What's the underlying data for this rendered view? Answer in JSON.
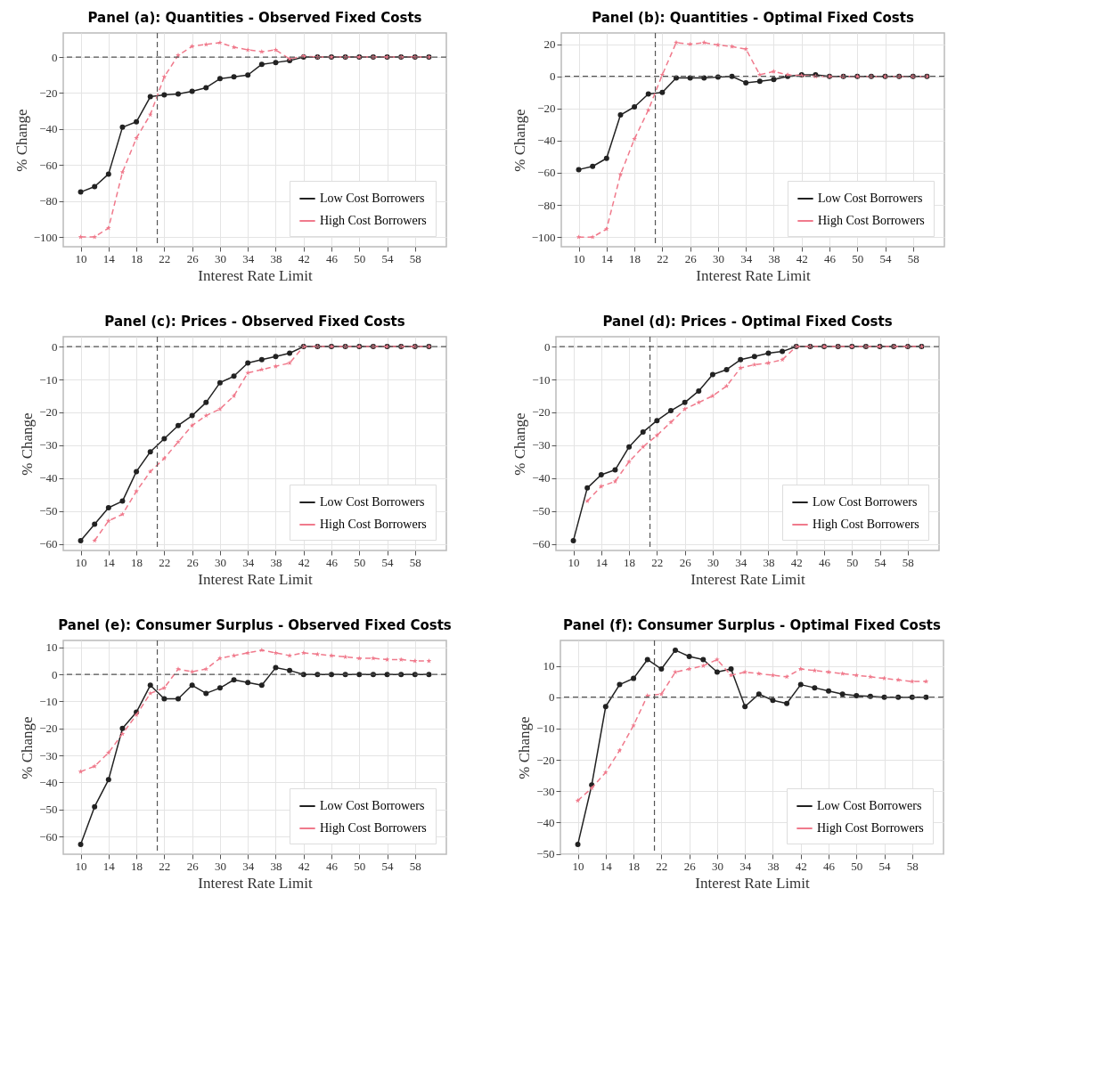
{
  "chart_data": [
    {
      "type": "line",
      "title": "Panel (a): Quantities - Observed Fixed Costs",
      "xlabel": "Interest Rate Limit",
      "ylabel": "% Change",
      "x": [
        10,
        12,
        14,
        16,
        18,
        20,
        22,
        24,
        26,
        28,
        30,
        32,
        34,
        36,
        38,
        40,
        42,
        44,
        46,
        48,
        50,
        52,
        54,
        56,
        58,
        60
      ],
      "xlim": [
        7.5,
        62.5
      ],
      "xticks": [
        10,
        14,
        18,
        22,
        26,
        30,
        34,
        38,
        42,
        46,
        50,
        54,
        58
      ],
      "ylim": [
        -105.4,
        13.4
      ],
      "yticks": [
        -100,
        -80,
        -60,
        -40,
        -20,
        0
      ],
      "grid": true,
      "legend": "bottom right",
      "ref_lines": [
        {
          "axis": "x",
          "value": 21,
          "color": "#555555",
          "line_style": "dashed"
        },
        {
          "axis": "y",
          "value": 0,
          "color": "#555555",
          "line_style": "dashed"
        }
      ],
      "series": [
        {
          "name": "Low Cost Borrowers",
          "color": "#222222",
          "line_style": "solid",
          "marker": "circle",
          "values": [
            -75,
            -72,
            -65,
            -39,
            -36,
            -22,
            -21,
            -20.5,
            -19,
            -17,
            -12,
            -11,
            -10,
            -4,
            -3,
            -2,
            0,
            0,
            0,
            0,
            0,
            0,
            0,
            0,
            0,
            0
          ]
        },
        {
          "name": "High Cost Borrowers",
          "color": "#f07a8c",
          "line_style": "dashed",
          "marker": "star",
          "values": [
            -100,
            -100,
            -95,
            -64,
            -45,
            -32,
            -11,
            1,
            6,
            7,
            8,
            5.5,
            4,
            3,
            4,
            -1,
            0.5,
            0,
            0,
            0,
            0,
            0,
            0,
            0,
            0,
            0
          ]
        }
      ]
    },
    {
      "type": "line",
      "title": "Panel (b): Quantities - Optimal Fixed Costs",
      "xlabel": "Interest Rate Limit",
      "ylabel": "% Change",
      "x": [
        10,
        12,
        14,
        16,
        18,
        20,
        22,
        24,
        26,
        28,
        30,
        32,
        34,
        36,
        38,
        40,
        42,
        44,
        46,
        48,
        50,
        52,
        54,
        56,
        58,
        60
      ],
      "xlim": [
        7.5,
        62.5
      ],
      "xticks": [
        10,
        14,
        18,
        22,
        26,
        30,
        34,
        38,
        42,
        46,
        50,
        54,
        58
      ],
      "ylim": [
        -106,
        27
      ],
      "yticks": [
        -100,
        -80,
        -60,
        -40,
        -20,
        0,
        20
      ],
      "grid": true,
      "legend": "bottom right",
      "ref_lines": [
        {
          "axis": "x",
          "value": 21,
          "color": "#555555",
          "line_style": "dashed"
        },
        {
          "axis": "y",
          "value": 0,
          "color": "#555555",
          "line_style": "dashed"
        }
      ],
      "series": [
        {
          "name": "Low Cost Borrowers",
          "color": "#222222",
          "line_style": "solid",
          "marker": "circle",
          "values": [
            -58,
            -56,
            -51,
            -24,
            -19,
            -11,
            -10,
            -1,
            -1,
            -1,
            -0.5,
            0,
            -4,
            -3,
            -2,
            0,
            1,
            1,
            0,
            0,
            0,
            0,
            0,
            0,
            0,
            0
          ]
        },
        {
          "name": "High Cost Borrowers",
          "color": "#f07a8c",
          "line_style": "dashed",
          "marker": "star",
          "values": [
            -100,
            -100,
            -95,
            -61,
            -39,
            -21,
            1,
            21,
            20,
            21,
            19.5,
            18.5,
            17,
            1,
            3,
            1,
            0.5,
            0,
            0,
            0,
            0,
            0,
            0,
            0,
            0,
            0
          ]
        }
      ]
    },
    {
      "type": "line",
      "title": "Panel (c): Prices - Observed Fixed Costs",
      "xlabel": "Interest Rate Limit",
      "ylabel": "% Change",
      "x": [
        10,
        12,
        14,
        16,
        18,
        20,
        22,
        24,
        26,
        28,
        30,
        32,
        34,
        36,
        38,
        40,
        42,
        44,
        46,
        48,
        50,
        52,
        54,
        56,
        58,
        60
      ],
      "xlim": [
        7.5,
        62.5
      ],
      "xticks": [
        10,
        14,
        18,
        22,
        26,
        30,
        34,
        38,
        42,
        46,
        50,
        54,
        58
      ],
      "ylim": [
        -62,
        3
      ],
      "yticks": [
        -60,
        -50,
        -40,
        -30,
        -20,
        -10,
        0
      ],
      "grid": true,
      "legend": "bottom right",
      "ref_lines": [
        {
          "axis": "x",
          "value": 21,
          "color": "#555555",
          "line_style": "dashed"
        },
        {
          "axis": "y",
          "value": 0,
          "color": "#555555",
          "line_style": "dashed"
        }
      ],
      "series": [
        {
          "name": "Low Cost Borrowers",
          "color": "#222222",
          "line_style": "solid",
          "marker": "circle",
          "values": [
            -59,
            -54,
            -49,
            -47,
            -38,
            -32,
            -28,
            -24,
            -21,
            -17,
            -11,
            -9,
            -5,
            -4,
            -3,
            -2,
            0,
            0,
            0,
            0,
            0,
            0,
            0,
            0,
            0,
            0
          ]
        },
        {
          "name": "High Cost Borrowers",
          "color": "#f07a8c",
          "line_style": "dashed",
          "marker": "star",
          "values": [
            null,
            -59,
            -53,
            -51,
            -44,
            -38,
            -34,
            -29,
            -24,
            -21,
            -19,
            -15,
            -8,
            -7,
            -6,
            -5,
            0,
            0,
            0,
            0,
            0,
            0,
            0,
            0,
            0,
            0
          ]
        }
      ]
    },
    {
      "type": "line",
      "title": "Panel (d): Prices - Optimal Fixed Costs",
      "xlabel": "Interest Rate Limit",
      "ylabel": "% Change",
      "x": [
        10,
        12,
        14,
        16,
        18,
        20,
        22,
        24,
        26,
        28,
        30,
        32,
        34,
        36,
        38,
        40,
        42,
        44,
        46,
        48,
        50,
        52,
        54,
        56,
        58,
        60
      ],
      "xlim": [
        7.5,
        62.5
      ],
      "xticks": [
        10,
        14,
        18,
        22,
        26,
        30,
        34,
        38,
        42,
        46,
        50,
        54,
        58
      ],
      "ylim": [
        -62,
        3
      ],
      "yticks": [
        -60,
        -50,
        -40,
        -30,
        -20,
        -10,
        0
      ],
      "grid": true,
      "legend": "bottom right",
      "ref_lines": [
        {
          "axis": "x",
          "value": 21,
          "color": "#555555",
          "line_style": "dashed"
        },
        {
          "axis": "y",
          "value": 0,
          "color": "#555555",
          "line_style": "dashed"
        }
      ],
      "series": [
        {
          "name": "Low Cost Borrowers",
          "color": "#222222",
          "line_style": "solid",
          "marker": "circle",
          "values": [
            -59,
            -43,
            -39,
            -37.5,
            -30.5,
            -26,
            -22.5,
            -19.5,
            -17,
            -13.5,
            -8.5,
            -7,
            -4,
            -3,
            -2,
            -1.5,
            0,
            0,
            0,
            0,
            0,
            0,
            0,
            0,
            0,
            0
          ]
        },
        {
          "name": "High Cost Borrowers",
          "color": "#f07a8c",
          "line_style": "dashed",
          "marker": "star",
          "values": [
            null,
            -47,
            -42.5,
            -41,
            -35,
            -30.5,
            -27,
            -23,
            -19,
            -17,
            -15,
            -12,
            -6.5,
            -5.5,
            -5,
            -4,
            0,
            0,
            0,
            0,
            0,
            0,
            0,
            0,
            0,
            0
          ]
        }
      ]
    },
    {
      "type": "line",
      "title": "Panel (e): Consumer Surplus - Observed Fixed Costs",
      "xlabel": "Interest Rate Limit",
      "ylabel": "% Change",
      "x": [
        10,
        12,
        14,
        16,
        18,
        20,
        22,
        24,
        26,
        28,
        30,
        32,
        34,
        36,
        38,
        40,
        42,
        44,
        46,
        48,
        50,
        52,
        54,
        56,
        58,
        60
      ],
      "xlim": [
        7.5,
        62.5
      ],
      "xticks": [
        10,
        14,
        18,
        22,
        26,
        30,
        34,
        38,
        42,
        46,
        50,
        54,
        58
      ],
      "ylim": [
        -66.6,
        12.6
      ],
      "yticks": [
        -60,
        -50,
        -40,
        -30,
        -20,
        -10,
        0,
        10
      ],
      "grid": true,
      "legend": "bottom right",
      "ref_lines": [
        {
          "axis": "x",
          "value": 21,
          "color": "#555555",
          "line_style": "dashed"
        },
        {
          "axis": "y",
          "value": 0,
          "color": "#555555",
          "line_style": "dashed"
        }
      ],
      "series": [
        {
          "name": "Low Cost Borrowers",
          "color": "#222222",
          "line_style": "solid",
          "marker": "circle",
          "values": [
            -63,
            -49,
            -39,
            -20,
            -14,
            -4,
            -9,
            -9,
            -4,
            -7,
            -5,
            -2,
            -3,
            -4,
            2.5,
            1.5,
            0,
            0,
            0,
            0,
            0,
            0,
            0,
            0,
            0,
            0
          ]
        },
        {
          "name": "High Cost Borrowers",
          "color": "#f07a8c",
          "line_style": "dashed",
          "marker": "star",
          "values": [
            -36,
            -34,
            -29,
            -22,
            -15,
            -7,
            -5,
            2,
            1,
            2,
            6,
            7,
            8,
            9,
            8,
            7,
            8,
            7.5,
            7,
            6.5,
            6,
            6,
            5.5,
            5.5,
            5,
            5
          ]
        }
      ]
    },
    {
      "type": "line",
      "title": "Panel (f): Consumer Surplus - Optimal Fixed Costs",
      "xlabel": "Interest Rate Limit",
      "ylabel": "% Change",
      "x": [
        10,
        12,
        14,
        16,
        18,
        20,
        22,
        24,
        26,
        28,
        30,
        32,
        34,
        36,
        38,
        40,
        42,
        44,
        46,
        48,
        50,
        52,
        54,
        56,
        58,
        60
      ],
      "xlim": [
        7.5,
        62.5
      ],
      "xticks": [
        10,
        14,
        18,
        22,
        26,
        30,
        34,
        38,
        42,
        46,
        50,
        54,
        58
      ],
      "ylim": [
        -50.1,
        18.1
      ],
      "yticks": [
        -50,
        -40,
        -30,
        -20,
        -10,
        0,
        10
      ],
      "grid": true,
      "legend": "bottom right",
      "ref_lines": [
        {
          "axis": "x",
          "value": 21,
          "color": "#555555",
          "line_style": "dashed"
        },
        {
          "axis": "y",
          "value": 0,
          "color": "#555555",
          "line_style": "dashed"
        }
      ],
      "series": [
        {
          "name": "Low Cost Borrowers",
          "color": "#222222",
          "line_style": "solid",
          "marker": "circle",
          "values": [
            -47,
            -28,
            -3,
            4,
            6,
            12,
            9,
            15,
            13,
            12,
            8,
            9,
            -3,
            1,
            -1,
            -2,
            4,
            3,
            2,
            1,
            0.5,
            0.3,
            0,
            0,
            0,
            0
          ]
        },
        {
          "name": "High Cost Borrowers",
          "color": "#f07a8c",
          "line_style": "dashed",
          "marker": "star",
          "values": [
            -33,
            -29,
            -24,
            -17,
            -9,
            0.5,
            1,
            8,
            9,
            10,
            12,
            7,
            8,
            7.5,
            7,
            6.5,
            9,
            8.5,
            8,
            7.5,
            7,
            6.5,
            6,
            5.5,
            5,
            5
          ]
        }
      ]
    }
  ]
}
